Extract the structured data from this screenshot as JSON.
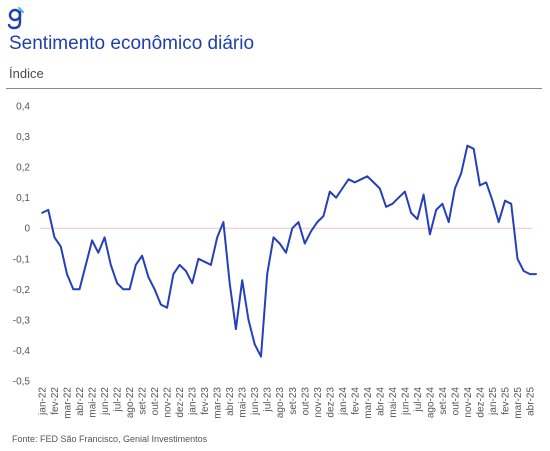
{
  "header": {
    "title": "Sentimento econômico diário",
    "subtitle": "Índice"
  },
  "footer": {
    "source": "Fonte: FED São Francisco, Genial Investimentos"
  },
  "colors": {
    "brand": "#1f3fae",
    "line": "#2540b8",
    "zero_line": "#f2c4c4"
  },
  "chart_data": {
    "type": "line",
    "ylim": [
      -0.5,
      0.4
    ],
    "y_ticks": [
      "0,4",
      "0,3",
      "0,2",
      "0,1",
      "0",
      "-0,1",
      "-0,2",
      "-0,3",
      "-0,4",
      "-0,5"
    ],
    "y_tick_values": [
      0.4,
      0.3,
      0.2,
      0.1,
      0,
      -0.1,
      -0.2,
      -0.3,
      -0.4,
      -0.5
    ],
    "x_ticks": [
      "jan-22",
      "fev-22",
      "mar-22",
      "abr-22",
      "mai-22",
      "jun-22",
      "jul-22",
      "ago-22",
      "set-22",
      "out-22",
      "nov-22",
      "dez-22",
      "jan-23",
      "fev-23",
      "mar-23",
      "abr-23",
      "mai-23",
      "jun-23",
      "jul-23",
      "ago-23",
      "set-23",
      "out-23",
      "nov-23",
      "dez-23",
      "jan-24",
      "fev-24",
      "mar-24",
      "abr-24",
      "mai-24",
      "jun-24",
      "jul-24",
      "ago-24",
      "set-24",
      "out-24",
      "nov-24",
      "dez-24",
      "jan-25",
      "fev-25",
      "mar-25",
      "abr-25"
    ],
    "grid": false,
    "series": [
      {
        "x": [
          "jan-22",
          "jan-22",
          "fev-22",
          "fev-22",
          "mar-22",
          "mar-22",
          "abr-22",
          "abr-22",
          "mai-22",
          "mai-22",
          "jun-22",
          "jun-22",
          "jul-22",
          "jul-22",
          "ago-22",
          "ago-22",
          "set-22",
          "set-22",
          "out-22",
          "out-22",
          "nov-22",
          "nov-22",
          "dez-22",
          "dez-22",
          "jan-23",
          "jan-23",
          "fev-23",
          "fev-23",
          "mar-23",
          "mar-23",
          "abr-23",
          "abr-23",
          "mai-23",
          "mai-23",
          "jun-23",
          "jun-23",
          "jul-23",
          "jul-23",
          "ago-23",
          "ago-23",
          "set-23",
          "set-23",
          "out-23",
          "out-23",
          "nov-23",
          "nov-23",
          "dez-23",
          "dez-23",
          "jan-24",
          "jan-24",
          "fev-24",
          "fev-24",
          "mar-24",
          "mar-24",
          "abr-24",
          "abr-24",
          "mai-24",
          "mai-24",
          "jun-24",
          "jun-24",
          "jul-24",
          "jul-24",
          "ago-24",
          "ago-24",
          "set-24",
          "set-24",
          "out-24",
          "out-24",
          "nov-24",
          "nov-24",
          "dez-24",
          "dez-24",
          "jan-25",
          "jan-25",
          "fev-25",
          "fev-25",
          "mar-25",
          "mar-25",
          "abr-25",
          "abr-25"
        ],
        "values": [
          0.05,
          0.06,
          -0.03,
          -0.06,
          -0.15,
          -0.2,
          -0.2,
          -0.12,
          -0.04,
          -0.08,
          -0.03,
          -0.12,
          -0.18,
          -0.2,
          -0.2,
          -0.12,
          -0.09,
          -0.16,
          -0.2,
          -0.25,
          -0.26,
          -0.15,
          -0.12,
          -0.14,
          -0.18,
          -0.1,
          -0.11,
          -0.12,
          -0.03,
          0.02,
          -0.18,
          -0.33,
          -0.17,
          -0.3,
          -0.38,
          -0.42,
          -0.15,
          -0.03,
          -0.05,
          -0.08,
          0.0,
          0.02,
          -0.05,
          -0.01,
          0.02,
          0.04,
          0.12,
          0.1,
          0.13,
          0.16,
          0.15,
          0.16,
          0.17,
          0.15,
          0.13,
          0.07,
          0.08,
          0.1,
          0.12,
          0.05,
          0.03,
          0.11,
          -0.02,
          0.06,
          0.08,
          0.02,
          0.13,
          0.18,
          0.27,
          0.26,
          0.14,
          0.15,
          0.09,
          0.02,
          0.09,
          0.08,
          -0.1,
          -0.14,
          -0.15,
          -0.15
        ]
      }
    ]
  }
}
